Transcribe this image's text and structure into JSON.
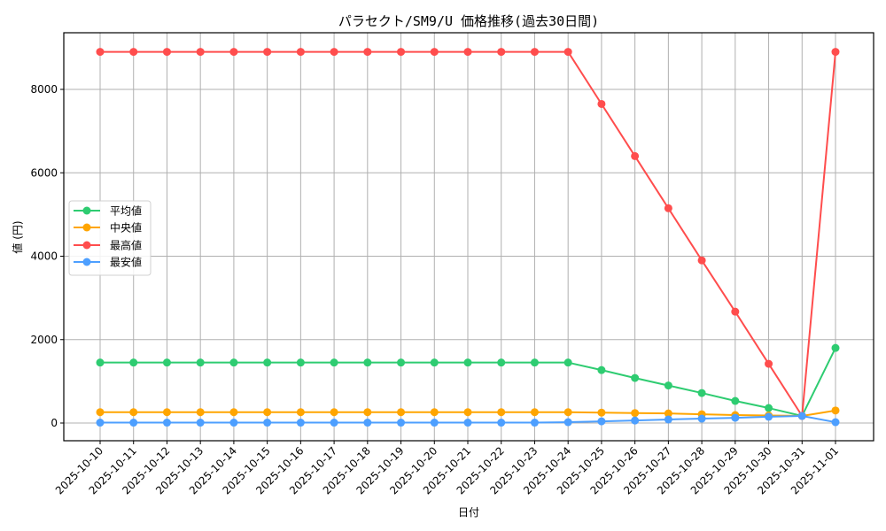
{
  "chart_data": {
    "type": "line",
    "title": "パラセクト/SM9/U 価格推移(過去30日間)",
    "xlabel": "日付",
    "ylabel": "値 (円)",
    "ylim": [
      -400,
      9330
    ],
    "yticks": [
      0,
      2000,
      4000,
      6000,
      8000
    ],
    "grid": true,
    "legend_position": "center left",
    "categories": [
      "2025-10-10",
      "2025-10-11",
      "2025-10-12",
      "2025-10-13",
      "2025-10-14",
      "2025-10-15",
      "2025-10-16",
      "2025-10-17",
      "2025-10-18",
      "2025-10-19",
      "2025-10-20",
      "2025-10-21",
      "2025-10-22",
      "2025-10-23",
      "2025-10-24",
      "2025-10-25",
      "2025-10-26",
      "2025-10-27",
      "2025-10-28",
      "2025-10-29",
      "2025-10-30",
      "2025-10-31",
      "2025-11-01"
    ],
    "series": [
      {
        "name": "平均値",
        "color": "#2ecc71",
        "values": [
          1450,
          1450,
          1450,
          1450,
          1450,
          1450,
          1450,
          1450,
          1450,
          1450,
          1450,
          1450,
          1450,
          1450,
          1450,
          1270,
          1080,
          900,
          720,
          530,
          360,
          170,
          1800
        ]
      },
      {
        "name": "中央値",
        "color": "#ffa500",
        "values": [
          260,
          260,
          260,
          260,
          260,
          260,
          260,
          260,
          260,
          260,
          260,
          260,
          260,
          260,
          260,
          250,
          240,
          230,
          210,
          190,
          180,
          170,
          300
        ]
      },
      {
        "name": "最高値",
        "color": "#ff4d4d",
        "values": [
          8900,
          8900,
          8900,
          8900,
          8900,
          8900,
          8900,
          8900,
          8900,
          8900,
          8900,
          8900,
          8900,
          8900,
          8900,
          7650,
          6400,
          5150,
          3900,
          2670,
          1420,
          170,
          8900
        ]
      },
      {
        "name": "最安値",
        "color": "#4d9fff",
        "values": [
          10,
          10,
          10,
          10,
          10,
          10,
          10,
          10,
          10,
          10,
          10,
          10,
          10,
          10,
          20,
          40,
          60,
          85,
          105,
          125,
          150,
          170,
          20
        ]
      }
    ]
  }
}
